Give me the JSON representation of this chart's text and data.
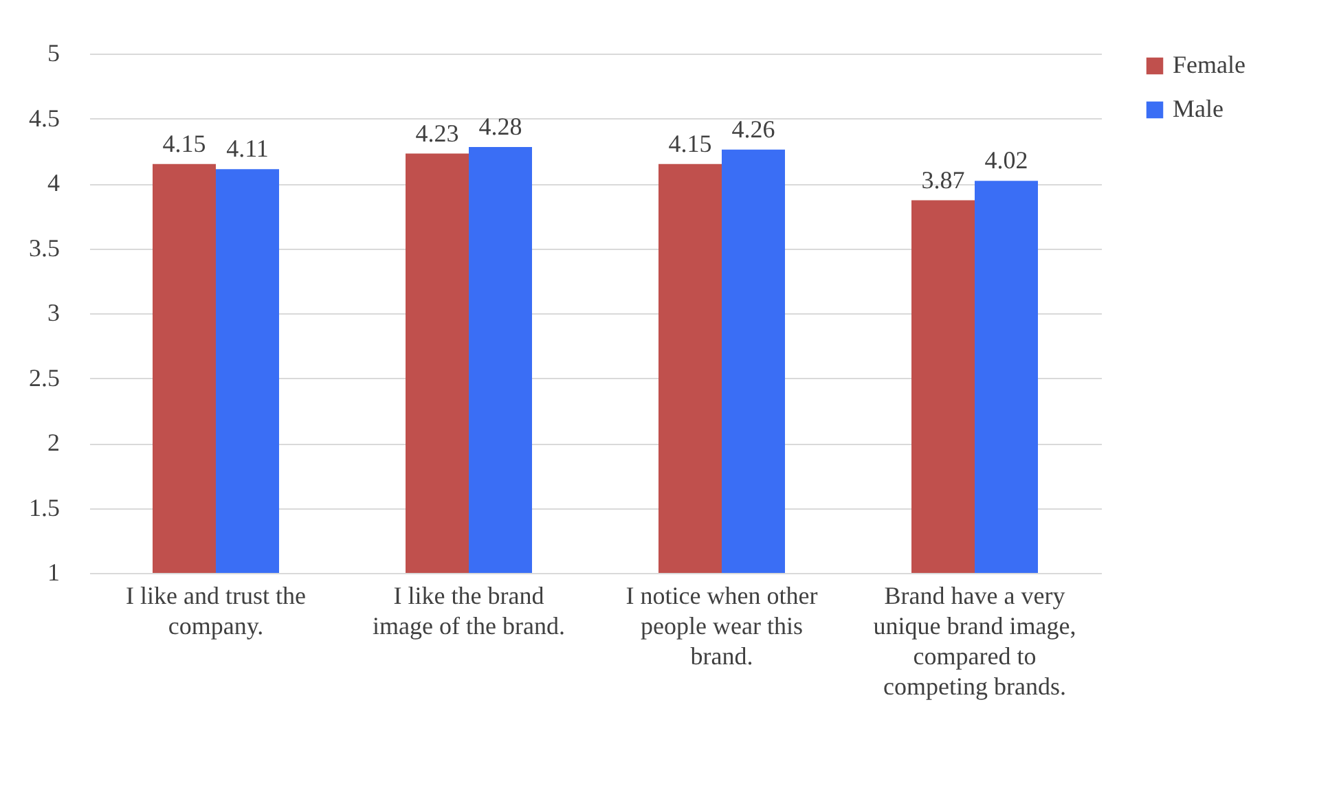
{
  "chart_data": {
    "type": "bar",
    "categories": [
      "I like and trust the company.",
      "I like the brand image of the brand.",
      "I notice when other people wear this brand.",
      "Brand have a very unique brand image, compared to competing brands."
    ],
    "series": [
      {
        "name": "Female",
        "color": "#c0504d",
        "values": [
          4.15,
          4.23,
          4.15,
          3.87
        ]
      },
      {
        "name": "Male",
        "color": "#3a6ef5",
        "values": [
          4.11,
          4.28,
          4.26,
          4.02
        ]
      }
    ],
    "ylim": [
      1,
      5
    ],
    "yticks": [
      1,
      1.5,
      2,
      2.5,
      3,
      3.5,
      4,
      4.5,
      5
    ],
    "grid": "y",
    "legend": "right",
    "data_labels": true
  }
}
